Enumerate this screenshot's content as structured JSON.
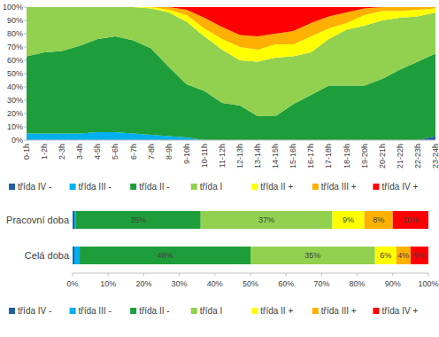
{
  "chart_data": [
    {
      "type": "area",
      "stacked": true,
      "grid": false,
      "legend": "bottom",
      "categories": [
        "0-1h",
        "1-2h",
        "2-3h",
        "3-4h",
        "4-5h",
        "5-6h",
        "6-7h",
        "7-8h",
        "8-9h",
        "9-10h",
        "10-11h",
        "11-12h",
        "12-13h",
        "13-14h",
        "14-15h",
        "15-16h",
        "16-17h",
        "17-18h",
        "18-19h",
        "19-20h",
        "20-21h",
        "21-22h",
        "22-23h",
        "23-24h"
      ],
      "ylim": [
        0,
        100
      ],
      "yticks": [
        {
          "value": 0,
          "label": "0%"
        },
        {
          "value": 10,
          "label": "10%"
        },
        {
          "value": 20,
          "label": "20%"
        },
        {
          "value": 30,
          "label": "30%"
        },
        {
          "value": 40,
          "label": "40%"
        },
        {
          "value": 50,
          "label": "50%"
        },
        {
          "value": 60,
          "label": "60%"
        },
        {
          "value": 70,
          "label": "70%"
        },
        {
          "value": 80,
          "label": "80%"
        },
        {
          "value": 90,
          "label": "90%"
        },
        {
          "value": 100,
          "label": "100%"
        }
      ],
      "series": [
        {
          "name": "třída IV -",
          "color": "#1f5fa8",
          "values": [
            0,
            0,
            0,
            0,
            0,
            0,
            0,
            0,
            0,
            0,
            0,
            0,
            0,
            0,
            0,
            0,
            0,
            0,
            0,
            0,
            0,
            0,
            0,
            3
          ]
        },
        {
          "name": "třída III -",
          "color": "#00b0f0",
          "values": [
            5,
            5,
            5,
            5,
            6,
            6,
            5,
            4,
            3,
            2,
            0,
            0,
            0,
            0,
            0,
            0,
            0,
            0,
            0,
            0,
            0,
            0,
            0,
            0
          ]
        },
        {
          "name": "třída II -",
          "color": "#1e9e3a",
          "values": [
            58,
            61,
            62,
            66,
            70,
            72,
            70,
            65,
            52,
            40,
            37,
            28,
            26,
            18,
            18,
            27,
            34,
            41,
            41,
            41,
            46,
            53,
            59,
            62
          ]
        },
        {
          "name": "třída I",
          "color": "#92d050",
          "values": [
            37,
            34,
            33,
            29,
            24,
            22,
            25,
            30,
            41,
            47,
            41,
            40,
            34,
            41,
            44,
            36,
            32,
            35,
            42,
            45,
            44,
            39,
            34,
            31
          ]
        },
        {
          "name": "třída II +",
          "color": "#ffff00",
          "values": [
            0,
            0,
            0,
            0,
            0,
            0,
            0,
            1,
            2,
            5,
            6,
            8,
            10,
            9,
            10,
            9,
            12,
            8,
            5,
            8,
            7,
            5,
            5,
            3
          ]
        },
        {
          "name": "třída III +",
          "color": "#ffb000",
          "values": [
            0,
            0,
            0,
            0,
            0,
            0,
            0,
            0,
            2,
            4,
            8,
            9,
            9,
            10,
            8,
            10,
            10,
            9,
            8,
            5,
            3,
            3,
            2,
            1
          ]
        },
        {
          "name": "třída IV +",
          "color": "#ff0000",
          "values": [
            0,
            0,
            0,
            0,
            0,
            0,
            0,
            0,
            0,
            2,
            8,
            15,
            21,
            22,
            20,
            18,
            12,
            7,
            4,
            1,
            0,
            0,
            0,
            0
          ]
        }
      ]
    },
    {
      "type": "bar",
      "orientation": "horizontal",
      "stacked": true,
      "data_labels": true,
      "grid": false,
      "legend": "bottom",
      "categories": [
        "Pracovní doba",
        "Celá doba"
      ],
      "xlim": [
        0,
        100
      ],
      "xticks": [
        {
          "value": 0,
          "label": "0%"
        },
        {
          "value": 10,
          "label": "10%"
        },
        {
          "value": 20,
          "label": "20%"
        },
        {
          "value": 30,
          "label": "30%"
        },
        {
          "value": 40,
          "label": "40%"
        },
        {
          "value": 50,
          "label": "50%"
        },
        {
          "value": 60,
          "label": "60%"
        },
        {
          "value": 70,
          "label": "70%"
        },
        {
          "value": 80,
          "label": "80%"
        },
        {
          "value": 90,
          "label": "90%"
        },
        {
          "value": 100,
          "label": "100%"
        }
      ],
      "series": [
        {
          "name": "třída IV -",
          "color": "#1f5fa8",
          "values": [
            0.5,
            0.5
          ],
          "value_labels": [
            null,
            null
          ]
        },
        {
          "name": "třída III -",
          "color": "#00b0f0",
          "values": [
            0.5,
            1.5
          ],
          "value_labels": [
            null,
            null
          ]
        },
        {
          "name": "třída II -",
          "color": "#1e9e3a",
          "values": [
            35,
            48
          ],
          "value_labels": [
            "35%",
            "48%"
          ]
        },
        {
          "name": "třída I",
          "color": "#92d050",
          "values": [
            37,
            35
          ],
          "value_labels": [
            "37%",
            "35%"
          ]
        },
        {
          "name": "třída II +",
          "color": "#ffff00",
          "values": [
            9,
            6
          ],
          "value_labels": [
            "9%",
            "6%"
          ]
        },
        {
          "name": "třída III +",
          "color": "#ffb000",
          "values": [
            8,
            4
          ],
          "value_labels": [
            "8%",
            "4%"
          ]
        },
        {
          "name": "třída IV +",
          "color": "#ff0000",
          "values": [
            10,
            5
          ],
          "value_labels": [
            "10%",
            "5%"
          ]
        }
      ]
    }
  ]
}
